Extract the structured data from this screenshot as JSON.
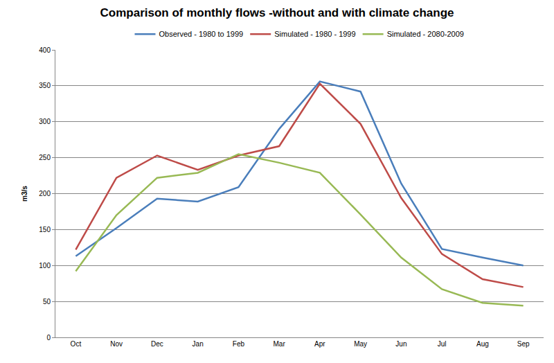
{
  "chart_data": {
    "type": "line",
    "title": "Comparison of monthly flows -without and with climate change",
    "y_label": "m3/s",
    "categories": [
      "Oct",
      "Nov",
      "Dec",
      "Jan",
      "Feb",
      "Mar",
      "Apr",
      "May",
      "Jun",
      "Jul",
      "Aug",
      "Sep"
    ],
    "series": [
      {
        "name": "Observed - 1980 to 1999",
        "color": "#4a7ebb",
        "values": [
          113,
          152,
          193,
          189,
          209,
          290,
          356,
          342,
          214,
          123,
          111,
          100
        ]
      },
      {
        "name": "Simulated - 1980 - 1999",
        "color": "#be4b48",
        "values": [
          122,
          222,
          253,
          233,
          253,
          266,
          353,
          297,
          194,
          116,
          81,
          70
        ]
      },
      {
        "name": "Simulated - 2080-2009",
        "color": "#98b954",
        "values": [
          92,
          170,
          222,
          229,
          255,
          243,
          229,
          171,
          111,
          67,
          48,
          44
        ]
      }
    ],
    "ylim": [
      0,
      400
    ],
    "yticks": [
      0,
      50,
      100,
      150,
      200,
      250,
      300,
      350,
      400
    ],
    "grid": true,
    "legend": "top"
  }
}
